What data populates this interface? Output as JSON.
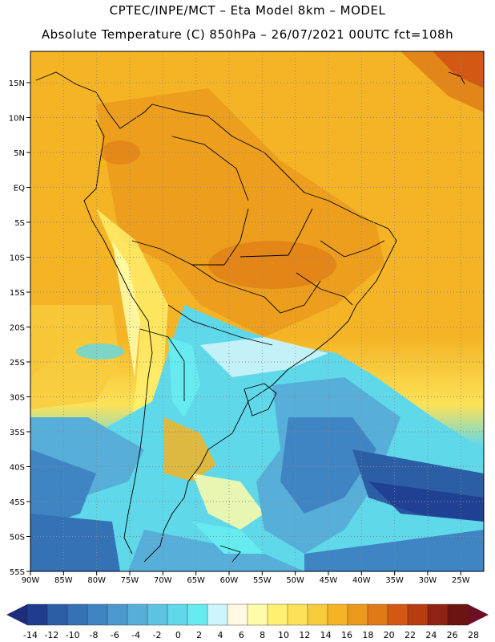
{
  "title": {
    "line1": "CPTEC/INPE/MCT –  Eta Model 8km – MODEL",
    "line2": "Absolute Temperature (C) 850hPa – 26/07/2021 00UTC fct=108h"
  },
  "map": {
    "lon_labels": [
      "90W",
      "85W",
      "80W",
      "75W",
      "70W",
      "65W",
      "60W",
      "55W",
      "50W",
      "45W",
      "40W",
      "35W",
      "30W",
      "25W"
    ],
    "lat_labels": [
      "15N",
      "10N",
      "5N",
      "EQ",
      "5S",
      "10S",
      "15S",
      "20S",
      "25S",
      "30S",
      "35S",
      "40S",
      "45S",
      "50S",
      "55S"
    ]
  },
  "colorbar": {
    "labels": [
      "-14",
      "-12",
      "-10",
      "-8",
      "-6",
      "-4",
      "-2",
      "0",
      "2",
      "4",
      "6",
      "8",
      "10",
      "12",
      "14",
      "16",
      "18",
      "20",
      "22",
      "24",
      "26",
      "28"
    ],
    "colors": [
      "#1f3c8f",
      "#2c5ea6",
      "#3571b5",
      "#3f84c3",
      "#4b98cf",
      "#56aed9",
      "#5cc4e2",
      "#5fd8ea",
      "#66ecf0",
      "#cdf5fa",
      "#fff8e2",
      "#fffba8",
      "#fff16f",
      "#fde258",
      "#f7cc3c",
      "#f4b425",
      "#eb9a1c",
      "#df7a16",
      "#d35814",
      "#b83c12",
      "#8f2210",
      "#6c1410"
    ],
    "left_arrow_color": "#1f2c7a",
    "right_arrow_color": "#6c0f24"
  }
}
